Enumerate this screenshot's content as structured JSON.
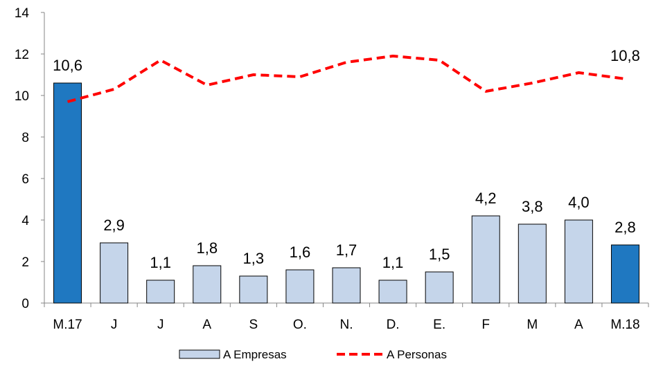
{
  "chart_data": {
    "type": "bar",
    "categories": [
      "M.17",
      "J",
      "J",
      "A",
      "S",
      "O.",
      "N.",
      "D.",
      "E.",
      "F",
      "M",
      "A",
      "M.18"
    ],
    "ylim": [
      0,
      14
    ],
    "yticks": [
      0,
      2,
      4,
      6,
      8,
      10,
      12,
      14
    ],
    "grid": false,
    "legend_position": "bottom-center",
    "series": [
      {
        "name": "A Empresas",
        "kind": "bar",
        "values": [
          10.6,
          2.9,
          1.1,
          1.8,
          1.3,
          1.6,
          1.7,
          1.1,
          1.5,
          4.2,
          3.8,
          4.0,
          2.8
        ],
        "data_labels": [
          "10,6",
          "2,9",
          "1,1",
          "1,8",
          "1,3",
          "1,6",
          "1,7",
          "1,1",
          "1,5",
          "4,2",
          "3,8",
          "4,0",
          "2,8"
        ],
        "color": "#c5d5ea",
        "highlight_color": "#1f78c1",
        "highlight_indices": [
          0,
          12
        ]
      },
      {
        "name": "A Personas",
        "kind": "line",
        "style": "dashed",
        "values": [
          9.7,
          10.3,
          11.7,
          10.5,
          11.0,
          10.9,
          11.6,
          11.9,
          11.7,
          10.2,
          10.6,
          11.1,
          10.8
        ],
        "end_label": "10,8",
        "color": "#ff0000"
      }
    ]
  }
}
